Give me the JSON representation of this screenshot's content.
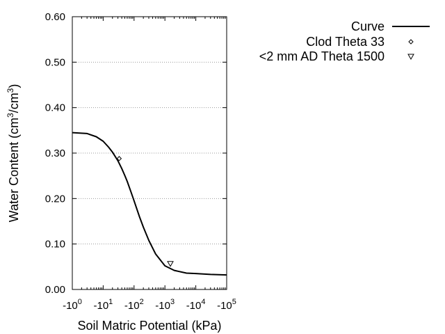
{
  "chart_data": {
    "type": "line",
    "title": "",
    "xlabel": "Soil Matric Potential (kPa)",
    "ylabel": "Water Content (cm3/cm3)",
    "ylabel_parts": {
      "main": "Water Content (cm",
      "sup1": "3",
      "mid": "/cm",
      "sup2": "3",
      "end": ")"
    },
    "x_scale": "log",
    "x_display": "negative-log10 (-10^n)",
    "xlim": [
      1,
      100000
    ],
    "ylim": [
      0,
      0.6
    ],
    "yticks": [
      "0.00",
      "0.10",
      "0.20",
      "0.30",
      "0.40",
      "0.50",
      "0.60"
    ],
    "xticks": [
      {
        "prefix": "-10",
        "exp": "0"
      },
      {
        "prefix": "-10",
        "exp": "1"
      },
      {
        "prefix": "-10",
        "exp": "2"
      },
      {
        "prefix": "-10",
        "exp": "3"
      },
      {
        "prefix": "-10",
        "exp": "4"
      },
      {
        "prefix": "-10",
        "exp": "5"
      }
    ],
    "grid": "horizontal dotted",
    "legend_position": "top-right, outside plot",
    "series": [
      {
        "name": "Curve",
        "style": "line",
        "x": [
          1,
          3,
          6,
          10,
          15,
          20,
          30,
          40,
          50,
          60,
          80,
          100,
          150,
          200,
          300,
          500,
          1000,
          2000,
          5000,
          10000,
          30000,
          100000
        ],
        "y": [
          0.345,
          0.343,
          0.336,
          0.326,
          0.313,
          0.302,
          0.283,
          0.266,
          0.251,
          0.238,
          0.214,
          0.195,
          0.16,
          0.137,
          0.108,
          0.078,
          0.052,
          0.042,
          0.036,
          0.035,
          0.033,
          0.032
        ]
      },
      {
        "name": "Clod Theta 33",
        "style": "marker-diamond",
        "x": [
          33
        ],
        "y": [
          0.288
        ]
      },
      {
        "name": "<2 mm AD Theta 1500",
        "style": "marker-triangle-down",
        "x": [
          1500
        ],
        "y": [
          0.057
        ]
      }
    ]
  }
}
